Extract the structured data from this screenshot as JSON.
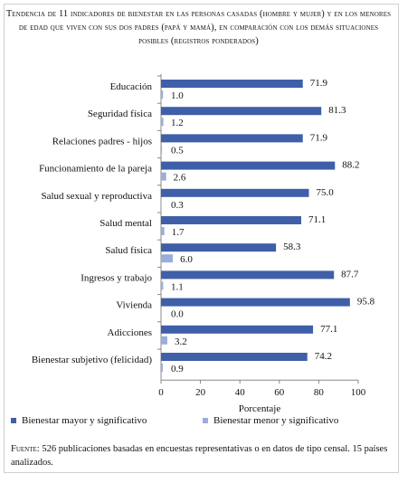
{
  "figure": {
    "title": "Tendencia de 11 indicadores de bienestar en las personas casadas (hombre y mujer) y en los menores de edad que viven con sus dos padres (papá y mamá), en comparación con los demás situaciones posibles (registros ponderados)",
    "source_label": "Fuente:",
    "source_text": " 526 publicaciones basadas en encuestas representativas o en datos de tipo censal. 15 países analizados."
  },
  "colors": {
    "series_major": "#3f5fa8",
    "series_minor": "#9aaedb",
    "axis": "#888888",
    "border": "#cfcfcf"
  },
  "chart_data": {
    "type": "bar",
    "orientation": "horizontal",
    "categories": [
      "Educación",
      "Seguridad física",
      "Relaciones padres - hijos",
      "Funcionamiento de la pareja",
      "Salud sexual y reproductiva",
      "Salud mental",
      "Salud física",
      "Ingresos y trabajo",
      "Vivienda",
      "Adicciones",
      "Bienestar subjetivo (felicidad)"
    ],
    "series": [
      {
        "name": "Bienestar mayor y significativo",
        "values": [
          71.9,
          81.3,
          71.9,
          88.2,
          75.0,
          71.1,
          58.3,
          87.7,
          95.8,
          77.1,
          74.2
        ]
      },
      {
        "name": "Bienestar menor y significativo",
        "values": [
          1.0,
          1.2,
          0.5,
          2.6,
          0.3,
          1.7,
          6.0,
          1.1,
          0.0,
          3.2,
          0.9
        ]
      }
    ],
    "xlabel": "Porcentaje",
    "xlim": [
      0,
      100
    ],
    "xticks": [
      0,
      20,
      40,
      60,
      80,
      100
    ],
    "grid": false,
    "legend_position": "bottom",
    "value_format": "one decimal"
  }
}
